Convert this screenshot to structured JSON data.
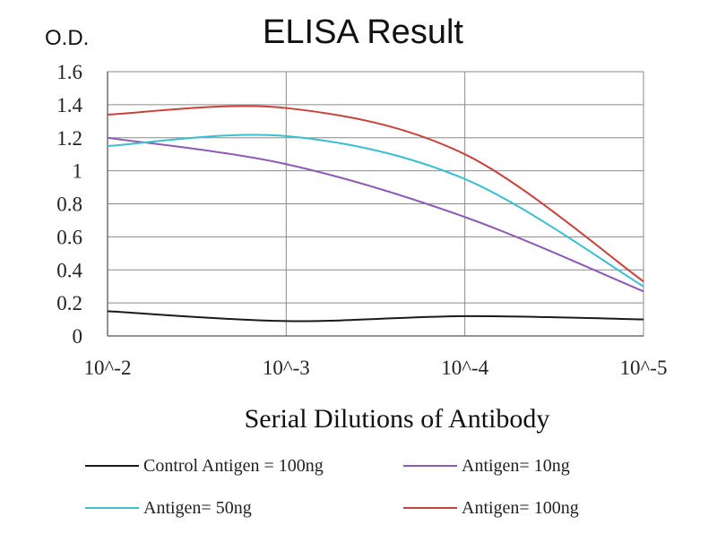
{
  "chart_data": {
    "type": "line",
    "title": "ELISA Result",
    "ylabel": "O.D.",
    "xlabel": "Serial Dilutions of Antibody",
    "categories": [
      "10^-2",
      "10^-3",
      "10^-4",
      "10^-5"
    ],
    "y_ticks": [
      "0",
      "0.2",
      "0.4",
      "0.6",
      "0.8",
      "1",
      "1.2",
      "1.4",
      "1.6"
    ],
    "ylim": [
      0,
      1.6
    ],
    "grid": true,
    "legend_position": "bottom",
    "series": [
      {
        "name": "Control Antigen = 100ng",
        "color": "#1a1a1a",
        "values": [
          0.15,
          0.09,
          0.12,
          0.1
        ]
      },
      {
        "name": "Antigen= 10ng",
        "color": "#8c5bb5",
        "values": [
          1.2,
          1.04,
          0.72,
          0.27
        ]
      },
      {
        "name": "Antigen= 50ng",
        "color": "#3bbfd0",
        "values": [
          1.15,
          1.21,
          0.95,
          0.3
        ]
      },
      {
        "name": "Antigen= 100ng",
        "color": "#c8423a",
        "values": [
          1.34,
          1.38,
          1.1,
          0.33
        ]
      }
    ]
  }
}
